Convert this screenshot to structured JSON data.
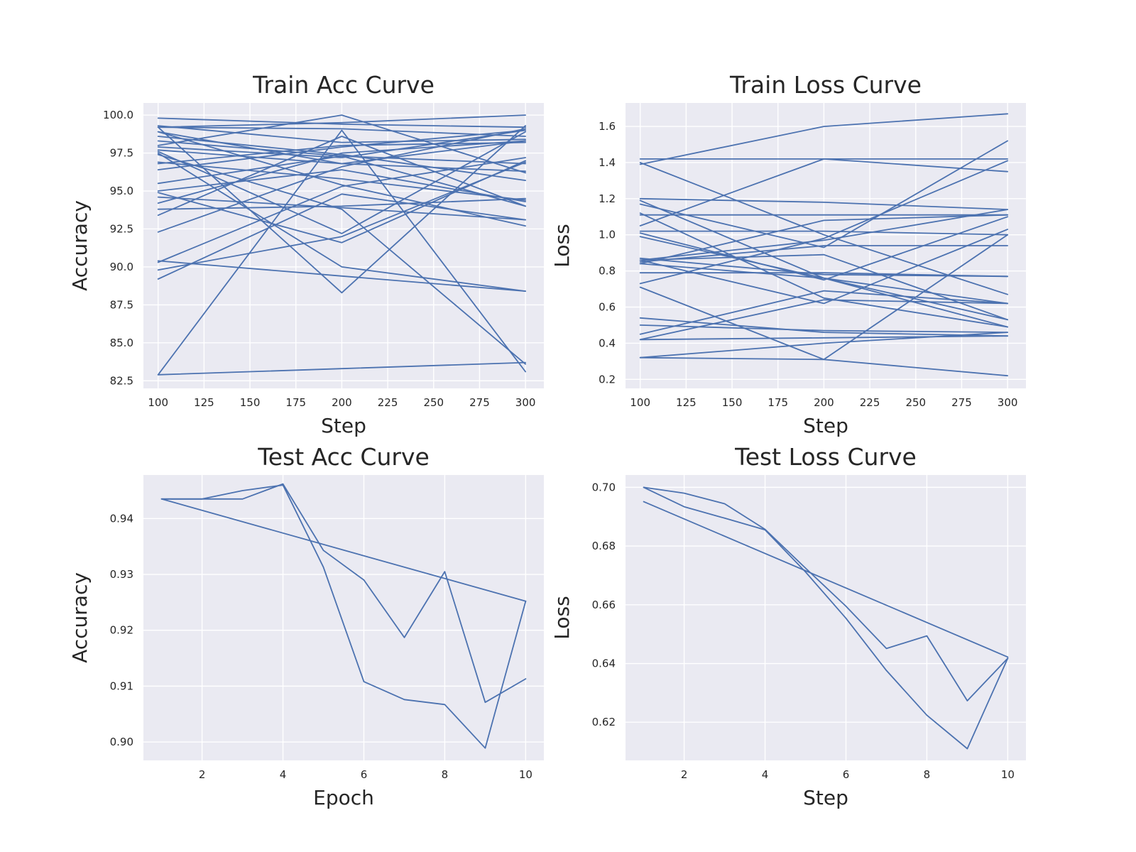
{
  "chart_data": [
    {
      "type": "line",
      "title": "Train Acc Curve",
      "xlabel": "Step",
      "ylabel": "Accuracy",
      "xlim": [
        92,
        310
      ],
      "ylim": [
        82.0,
        100.8
      ],
      "xticks": [
        100,
        125,
        150,
        175,
        200,
        225,
        250,
        275,
        300
      ],
      "xtick_labels": [
        "100",
        "125",
        "150",
        "175",
        "200",
        "225",
        "250",
        "275",
        "300"
      ],
      "yticks": [
        82.5,
        85.0,
        87.5,
        90.0,
        92.5,
        95.0,
        97.5,
        100.0
      ],
      "ytick_labels": [
        "82.5",
        "85.0",
        "87.5",
        "90.0",
        "92.5",
        "95.0",
        "97.5",
        "100.0"
      ],
      "grid": true,
      "color": "#4c72b0",
      "series": [
        {
          "x": [
            100,
            200,
            300
          ],
          "y": [
            99.8,
            99.4,
            99.2
          ]
        },
        {
          "x": [
            100,
            200,
            300
          ],
          "y": [
            99.2,
            99.5,
            100.0
          ]
        },
        {
          "x": [
            100,
            200,
            300
          ],
          "y": [
            99.3,
            98.2,
            98.4
          ]
        },
        {
          "x": [
            100,
            200,
            300
          ],
          "y": [
            98.9,
            96.8,
            96.3
          ]
        },
        {
          "x": [
            100,
            200,
            300
          ],
          "y": [
            98.6,
            97.4,
            95.7
          ]
        },
        {
          "x": [
            100,
            200,
            300
          ],
          "y": [
            98.3,
            97.3,
            94.0
          ]
        },
        {
          "x": [
            100,
            200,
            300
          ],
          "y": [
            97.7,
            96.8,
            98.3
          ]
        },
        {
          "x": [
            100,
            200,
            300
          ],
          "y": [
            97.4,
            93.8,
            83.6
          ]
        },
        {
          "x": [
            100,
            200,
            300
          ],
          "y": [
            97.5,
            90.0,
            88.4
          ]
        },
        {
          "x": [
            100,
            200,
            300
          ],
          "y": [
            96.4,
            97.9,
            99.0
          ]
        },
        {
          "x": [
            100,
            200,
            300
          ],
          "y": [
            95.5,
            97.3,
            96.8
          ]
        },
        {
          "x": [
            100,
            200,
            300
          ],
          "y": [
            95.0,
            96.4,
            94.3
          ]
        },
        {
          "x": [
            100,
            200,
            300
          ],
          "y": [
            94.6,
            93.9,
            93.1
          ]
        },
        {
          "x": [
            100,
            200,
            300
          ],
          "y": [
            93.8,
            94.0,
            94.5
          ]
        },
        {
          "x": [
            100,
            200,
            300
          ],
          "y": [
            92.3,
            96.6,
            99.1
          ]
        },
        {
          "x": [
            100,
            200,
            300
          ],
          "y": [
            90.3,
            95.3,
            97.2
          ]
        },
        {
          "x": [
            100,
            200,
            300
          ],
          "y": [
            90.4,
            89.4,
            88.4
          ]
        },
        {
          "x": [
            100,
            200,
            300
          ],
          "y": [
            89.8,
            92.0,
            96.9
          ]
        },
        {
          "x": [
            100,
            200,
            300
          ],
          "y": [
            89.2,
            94.8,
            93.1
          ]
        },
        {
          "x": [
            100,
            200,
            300
          ],
          "y": [
            82.9,
            83.3,
            83.7
          ]
        },
        {
          "x": [
            100,
            200,
            300
          ],
          "y": [
            82.9,
            99.0,
            83.1
          ]
        },
        {
          "x": [
            100,
            200,
            300
          ],
          "y": [
            99.2,
            88.3,
            99.3
          ]
        },
        {
          "x": [
            100,
            200,
            300
          ],
          "y": [
            98.0,
            100.0,
            96.2
          ]
        },
        {
          "x": [
            100,
            200,
            300
          ],
          "y": [
            94.9,
            91.6,
            97.0
          ]
        },
        {
          "x": [
            100,
            200,
            300
          ],
          "y": [
            97.6,
            92.2,
            98.9
          ]
        },
        {
          "x": [
            100,
            200,
            300
          ],
          "y": [
            99.2,
            99.1,
            98.6
          ]
        },
        {
          "x": [
            100,
            200,
            300
          ],
          "y": [
            96.8,
            98.0,
            98.2
          ]
        },
        {
          "x": [
            100,
            200,
            300
          ],
          "y": [
            96.9,
            95.8,
            94.4
          ]
        },
        {
          "x": [
            100,
            200,
            300
          ],
          "y": [
            97.9,
            97.2,
            99.0
          ]
        },
        {
          "x": [
            100,
            200,
            300
          ],
          "y": [
            94.2,
            97.5,
            98.3
          ]
        },
        {
          "x": [
            100,
            200,
            300
          ],
          "y": [
            98.9,
            95.4,
            92.7
          ]
        },
        {
          "x": [
            100,
            200,
            300
          ],
          "y": [
            93.4,
            98.6,
            94.0
          ]
        }
      ]
    },
    {
      "type": "line",
      "title": "Train Loss Curve",
      "xlabel": "Step",
      "ylabel": "Loss",
      "xlim": [
        92,
        310
      ],
      "ylim": [
        0.15,
        1.73
      ],
      "xticks": [
        100,
        125,
        150,
        175,
        200,
        225,
        250,
        275,
        300
      ],
      "xtick_labels": [
        "100",
        "125",
        "150",
        "175",
        "200",
        "225",
        "250",
        "275",
        "300"
      ],
      "yticks": [
        0.2,
        0.4,
        0.6,
        0.8,
        1.0,
        1.2,
        1.4,
        1.6
      ],
      "ytick_labels": [
        "0.2",
        "0.4",
        "0.6",
        "0.8",
        "1.0",
        "1.2",
        "1.4",
        "1.6"
      ],
      "grid": true,
      "color": "#4c72b0",
      "series": [
        {
          "x": [
            100,
            200,
            300
          ],
          "y": [
            1.39,
            1.6,
            1.67
          ]
        },
        {
          "x": [
            100,
            200,
            300
          ],
          "y": [
            1.42,
            1.42,
            1.42
          ]
        },
        {
          "x": [
            100,
            200,
            300
          ],
          "y": [
            1.4,
            1.0,
            0.67
          ]
        },
        {
          "x": [
            100,
            200,
            300
          ],
          "y": [
            1.2,
            1.18,
            1.14
          ]
        },
        {
          "x": [
            100,
            200,
            300
          ],
          "y": [
            1.19,
            0.76,
            0.62
          ]
        },
        {
          "x": [
            100,
            200,
            300
          ],
          "y": [
            1.17,
            0.93,
            1.52
          ]
        },
        {
          "x": [
            100,
            200,
            300
          ],
          "y": [
            1.11,
            1.11,
            1.11
          ]
        },
        {
          "x": [
            100,
            200,
            300
          ],
          "y": [
            1.05,
            1.42,
            1.35
          ]
        },
        {
          "x": [
            100,
            200,
            300
          ],
          "y": [
            1.02,
            1.02,
            1.0
          ]
        },
        {
          "x": [
            100,
            200,
            300
          ],
          "y": [
            0.99,
            0.76,
            0.49
          ]
        },
        {
          "x": [
            100,
            200,
            300
          ],
          "y": [
            0.87,
            0.78,
            0.77
          ]
        },
        {
          "x": [
            100,
            200,
            300
          ],
          "y": [
            0.86,
            0.97,
            1.14
          ]
        },
        {
          "x": [
            100,
            200,
            300
          ],
          "y": [
            0.84,
            0.76,
            0.53
          ]
        },
        {
          "x": [
            100,
            200,
            300
          ],
          "y": [
            0.79,
            0.79,
            0.77
          ]
        },
        {
          "x": [
            100,
            200,
            300
          ],
          "y": [
            0.73,
            0.98,
            1.41
          ]
        },
        {
          "x": [
            100,
            200,
            300
          ],
          "y": [
            0.54,
            0.46,
            0.44
          ]
        },
        {
          "x": [
            100,
            200,
            300
          ],
          "y": [
            0.5,
            0.47,
            0.46
          ]
        },
        {
          "x": [
            100,
            200,
            300
          ],
          "y": [
            0.45,
            0.69,
            0.62
          ]
        },
        {
          "x": [
            100,
            200,
            300
          ],
          "y": [
            0.42,
            0.43,
            0.44
          ]
        },
        {
          "x": [
            100,
            200,
            300
          ],
          "y": [
            0.32,
            0.31,
            1.0
          ]
        },
        {
          "x": [
            100,
            200,
            300
          ],
          "y": [
            0.32,
            0.4,
            0.46
          ]
        },
        {
          "x": [
            100,
            200,
            300
          ],
          "y": [
            0.85,
            0.94,
            0.94
          ]
        },
        {
          "x": [
            100,
            200,
            300
          ],
          "y": [
            0.86,
            0.62,
            1.03
          ]
        },
        {
          "x": [
            100,
            200,
            300
          ],
          "y": [
            0.84,
            1.08,
            1.11
          ]
        },
        {
          "x": [
            100,
            200,
            300
          ],
          "y": [
            1.01,
            0.75,
            1.1
          ]
        },
        {
          "x": [
            100,
            200,
            300
          ],
          "y": [
            0.86,
            0.89,
            0.53
          ]
        },
        {
          "x": [
            100,
            200,
            300
          ],
          "y": [
            0.42,
            0.64,
            0.62
          ]
        },
        {
          "x": [
            100,
            200,
            300
          ],
          "y": [
            0.71,
            0.31,
            0.22
          ]
        },
        {
          "x": [
            100,
            200,
            300
          ],
          "y": [
            1.12,
            0.65,
            0.49
          ]
        }
      ]
    },
    {
      "type": "line",
      "title": "Test Acc Curve",
      "xlabel": "Epoch",
      "ylabel": "Accuracy",
      "xlim": [
        0.55,
        10.45
      ],
      "ylim": [
        0.8967,
        0.9478
      ],
      "xticks": [
        2,
        4,
        6,
        8,
        10
      ],
      "xtick_labels": [
        "2",
        "4",
        "6",
        "8",
        "10"
      ],
      "yticks": [
        0.9,
        0.91,
        0.92,
        0.93,
        0.94
      ],
      "ytick_labels": [
        "0.90",
        "0.91",
        "0.92",
        "0.93",
        "0.94"
      ],
      "grid": true,
      "color": "#4c72b0",
      "series": [
        {
          "x": [
            1,
            2,
            3,
            4,
            5,
            6,
            7,
            8,
            9,
            10
          ],
          "y": [
            0.9435,
            0.9435,
            0.9435,
            0.9462,
            0.9343,
            0.929,
            0.9187,
            0.9305,
            0.9071,
            0.9113
          ]
        },
        {
          "x": [
            1,
            2,
            3,
            4,
            5,
            6,
            7,
            8,
            9,
            10
          ],
          "y": [
            0.9435,
            0.9435,
            0.945,
            0.946,
            0.9313,
            0.9108,
            0.9076,
            0.9067,
            0.8989,
            0.9252
          ]
        },
        {
          "x": [
            1,
            10
          ],
          "y": [
            0.9435,
            0.9252
          ]
        }
      ]
    },
    {
      "type": "line",
      "title": "Test Loss Curve",
      "xlabel": "Step",
      "ylabel": "Loss",
      "xlim": [
        0.55,
        10.45
      ],
      "ylim": [
        0.607,
        0.7042
      ],
      "xticks": [
        2,
        4,
        6,
        8,
        10
      ],
      "xtick_labels": [
        "2",
        "4",
        "6",
        "8",
        "10"
      ],
      "yticks": [
        0.62,
        0.64,
        0.66,
        0.68,
        0.7
      ],
      "ytick_labels": [
        "0.62",
        "0.64",
        "0.66",
        "0.68",
        "0.70"
      ],
      "grid": true,
      "color": "#4c72b0",
      "series": [
        {
          "x": [
            1,
            2,
            3,
            4,
            5,
            6,
            7,
            8,
            9,
            10
          ],
          "y": [
            0.7,
            0.698,
            0.6944,
            0.6857,
            0.6725,
            0.6595,
            0.6451,
            0.6494,
            0.6273,
            0.6418
          ]
        },
        {
          "x": [
            1,
            2,
            3,
            4,
            5,
            6,
            7,
            8,
            9,
            10
          ],
          "y": [
            0.7,
            0.6934,
            0.6895,
            0.6855,
            0.6712,
            0.6554,
            0.6376,
            0.6224,
            0.611,
            0.6418
          ]
        },
        {
          "x": [
            1,
            10
          ],
          "y": [
            0.6951,
            0.6422
          ]
        }
      ]
    }
  ]
}
